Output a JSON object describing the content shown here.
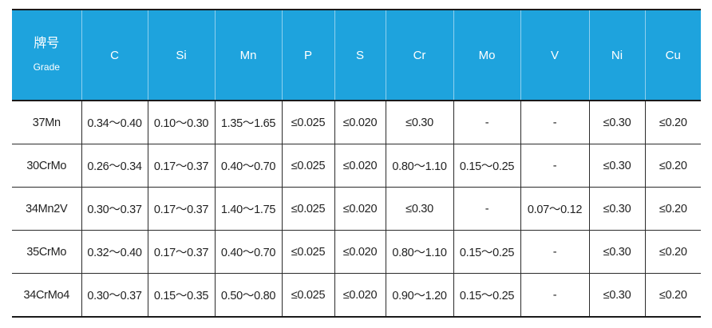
{
  "header": {
    "grade_zh": "牌号",
    "grade_en": "Grade",
    "columns": [
      "C",
      "Si",
      "Mn",
      "P",
      "S",
      "Cr",
      "Mo",
      "V",
      "Ni",
      "Cu"
    ]
  },
  "rows": [
    {
      "grade": "37Mn",
      "cells": [
        "0.34～0.40",
        "0.10～0.30",
        "1.35～1.65",
        "≤0.025",
        "≤0.020",
        "≤0.30",
        "-",
        "-",
        "≤0.30",
        "≤0.20"
      ]
    },
    {
      "grade": "30CrMo",
      "cells": [
        "0.26～0.34",
        "0.17～0.37",
        "0.40～0.70",
        "≤0.025",
        "≤0.020",
        "0.80～1.10",
        "0.15～0.25",
        "-",
        "≤0.30",
        "≤0.20"
      ]
    },
    {
      "grade": "34Mn2V",
      "cells": [
        "0.30～0.37",
        "0.17～0.37",
        "1.40～1.75",
        "≤0.025",
        "≤0.020",
        "≤0.30",
        "-",
        "0.07～0.12",
        "≤0.30",
        "≤0.20"
      ]
    },
    {
      "grade": "35CrMo",
      "cells": [
        "0.32～0.40",
        "0.17～0.37",
        "0.40～0.70",
        "≤0.025",
        "≤0.020",
        "0.80～1.10",
        "0.15～0.25",
        "-",
        "≤0.30",
        "≤0.20"
      ]
    },
    {
      "grade": "34CrMo4",
      "cells": [
        "0.30～0.37",
        "0.15～0.35",
        "0.50～0.80",
        "≤0.025",
        "≤0.020",
        "0.90～1.20",
        "0.15～0.25",
        "-",
        "≤0.30",
        "≤0.20"
      ]
    }
  ],
  "colors": {
    "header_bg": "#1ea3dd",
    "header_text": "#ffffff",
    "body_text": "#222222",
    "rule": "#1a1a1a"
  }
}
